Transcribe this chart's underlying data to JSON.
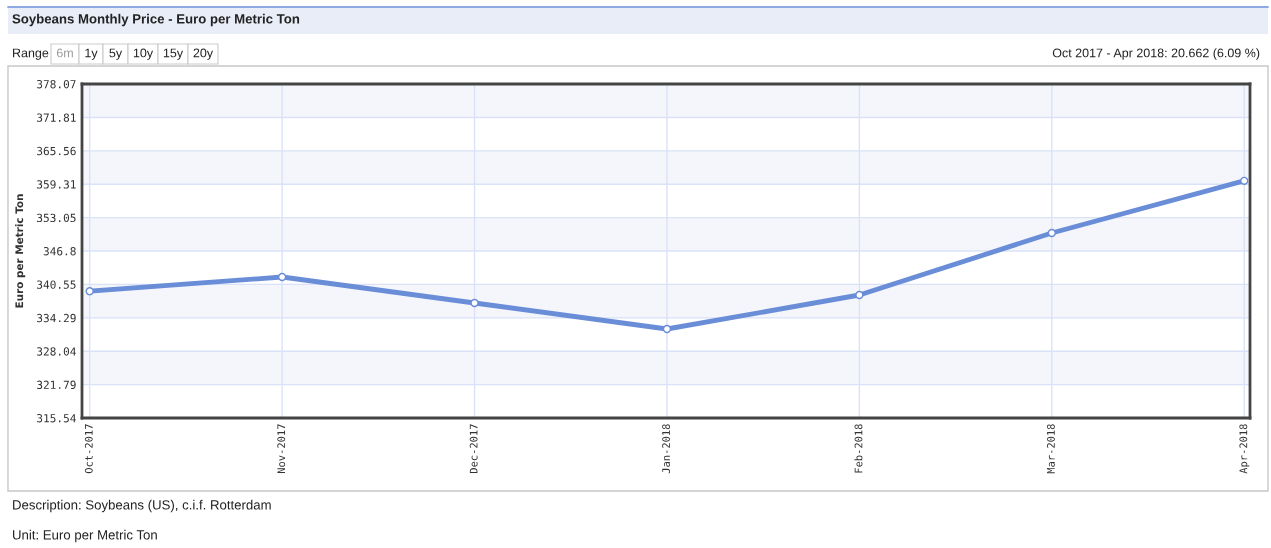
{
  "chart_data": {
    "type": "line",
    "title": "Soybeans Monthly Price - Euro per Metric Ton",
    "ylabel": "Euro per Metric Ton",
    "categories": [
      "Oct-2017",
      "Nov-2017",
      "Dec-2017",
      "Jan-2018",
      "Feb-2018",
      "Mar-2018",
      "Apr-2018"
    ],
    "series": [
      {
        "color": "#6a8dd8",
        "values": [
          339.28,
          341.94,
          337.07,
          332.2,
          338.57,
          350.17,
          359.94
        ]
      }
    ],
    "ylim": [
      315.54,
      378.07
    ],
    "yticks": [
      315.54,
      321.79,
      328.04,
      334.29,
      340.55,
      346.8,
      353.05,
      359.31,
      365.56,
      371.81,
      378.07
    ],
    "grid": true,
    "marker": "circle",
    "line_style": "solid",
    "legend": false,
    "annotations": [
      "Range",
      "6m",
      "1y",
      "5y",
      "10y",
      "15y",
      "20y",
      "Oct 2017 - Apr 2018: 20.662 (6.09 %)",
      "Description: Soybeans (US), c.i.f. Rotterdam",
      "Unit: Euro per Metric Ton"
    ]
  }
}
